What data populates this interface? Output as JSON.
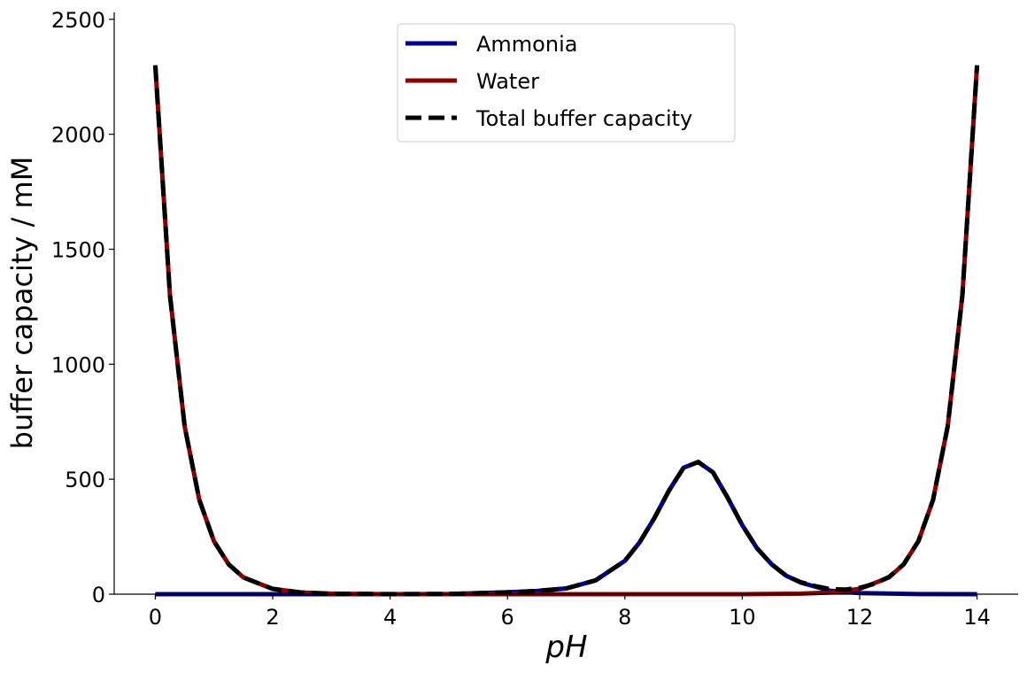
{
  "chart_data": {
    "type": "line",
    "xlabel": "pH",
    "ylabel": "buffer capacity / mM",
    "xlim": [
      -0.7,
      14.7
    ],
    "ylim": [
      0,
      2530
    ],
    "xticks": [
      0,
      2,
      4,
      6,
      8,
      10,
      12,
      14
    ],
    "yticks": [
      0,
      500,
      1000,
      1500,
      2000,
      2500
    ],
    "legend_position": "top-center",
    "grid": false,
    "series": [
      {
        "name": "Ammonia",
        "color": "#00008B",
        "style": "solid",
        "x": [
          0,
          1,
          2,
          3,
          4,
          5,
          6,
          6.5,
          7,
          7.5,
          8,
          8.25,
          8.5,
          8.75,
          9,
          9.25,
          9.5,
          9.75,
          10,
          10.25,
          10.5,
          10.75,
          11,
          11.5,
          12,
          13,
          14
        ],
        "y": [
          0,
          0,
          0,
          0,
          0.1,
          1,
          8,
          14,
          25,
          60,
          145,
          225,
          330,
          450,
          550,
          575,
          530,
          420,
          300,
          200,
          130,
          80,
          50,
          15,
          5,
          0.5,
          0
        ]
      },
      {
        "name": "Water",
        "color": "#8B0000",
        "style": "solid",
        "x": [
          0,
          0.25,
          0.5,
          0.75,
          1,
          1.25,
          1.5,
          2,
          2.5,
          3,
          4,
          5,
          6,
          7,
          8,
          9,
          10,
          11,
          11.5,
          12,
          12.5,
          12.75,
          13,
          13.25,
          13.5,
          13.75,
          14
        ],
        "y": [
          2300,
          1300,
          730,
          410,
          230,
          130,
          73,
          23,
          7,
          2.3,
          0.2,
          0,
          0,
          0,
          0,
          0,
          0.2,
          2.3,
          7,
          23,
          73,
          130,
          230,
          410,
          730,
          1300,
          2300
        ]
      },
      {
        "name": "Total buffer capacity",
        "color": "#000000",
        "style": "dashed",
        "x": [
          0,
          0.25,
          0.5,
          0.75,
          1,
          1.25,
          1.5,
          2,
          2.5,
          3,
          4,
          5,
          6,
          6.5,
          7,
          7.5,
          8,
          8.25,
          8.5,
          8.75,
          9,
          9.25,
          9.5,
          9.75,
          10,
          10.25,
          10.5,
          10.75,
          11,
          11.25,
          11.5,
          11.75,
          12,
          12.25,
          12.5,
          12.75,
          13,
          13.25,
          13.5,
          13.75,
          14
        ],
        "y": [
          2300,
          1300,
          730,
          410,
          230,
          130,
          73,
          23,
          7,
          2.3,
          0.3,
          1,
          8,
          14,
          25,
          60,
          145,
          225,
          330,
          450,
          550,
          575,
          530,
          420,
          300,
          200,
          130,
          80,
          52,
          35,
          22,
          20,
          28,
          45,
          75,
          130,
          230,
          410,
          730,
          1300,
          2300
        ]
      }
    ]
  }
}
